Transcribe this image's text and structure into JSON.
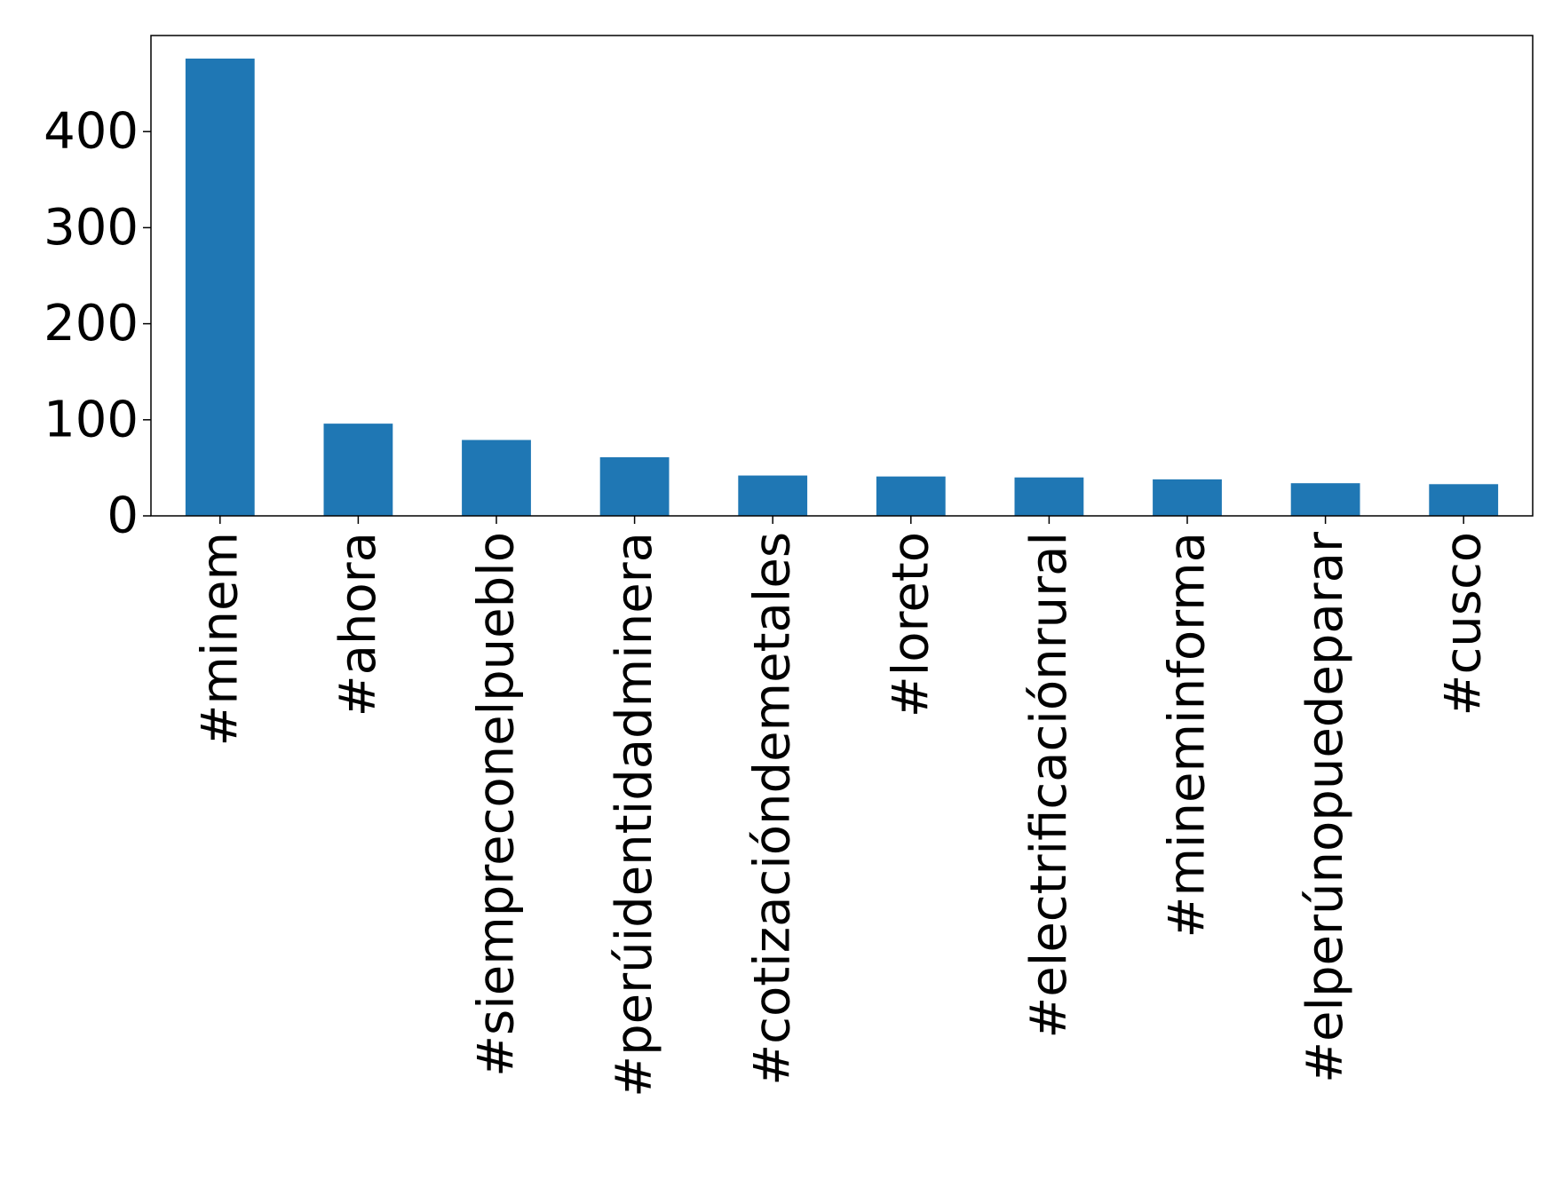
{
  "chart_data": {
    "type": "bar",
    "categories": [
      "#minem",
      "#ahora",
      "#siempreconelpueblo",
      "#perúidentidadminera",
      "#cotizacióndemetales",
      "#loreto",
      "#electrificaciónrural",
      "#mineminforma",
      "#elperúnopuedeparar",
      "#cusco"
    ],
    "values": [
      476,
      96,
      79,
      61,
      42,
      41,
      40,
      38,
      34,
      33
    ],
    "ylim": [
      0,
      500
    ],
    "yticks": [
      0,
      100,
      200,
      300,
      400
    ],
    "xlabel": "",
    "ylabel": "",
    "title": "",
    "grid": false,
    "bar_color": "#1f77b4"
  }
}
